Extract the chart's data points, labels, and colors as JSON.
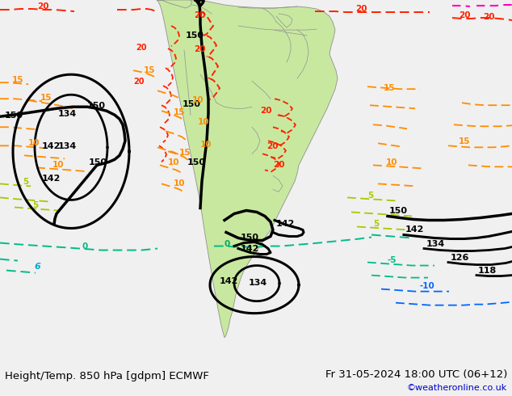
{
  "title_left": "Height/Temp. 850 hPa [gdpm] ECMWF",
  "title_right": "Fr 31-05-2024 18:00 UTC (06+12)",
  "credit": "©weatheronline.co.uk",
  "bg_color": "#c8c8c8",
  "land_color": "#c8e8a0",
  "land_color2": "#b0d888",
  "ocean_color": "#c8c8c8",
  "figsize": [
    6.34,
    4.9
  ],
  "dpi": 100,
  "bottom_bar_color": "#f0f0f0",
  "title_fontsize": 9.5,
  "credit_color": "#0000cc",
  "credit_fontsize": 8
}
